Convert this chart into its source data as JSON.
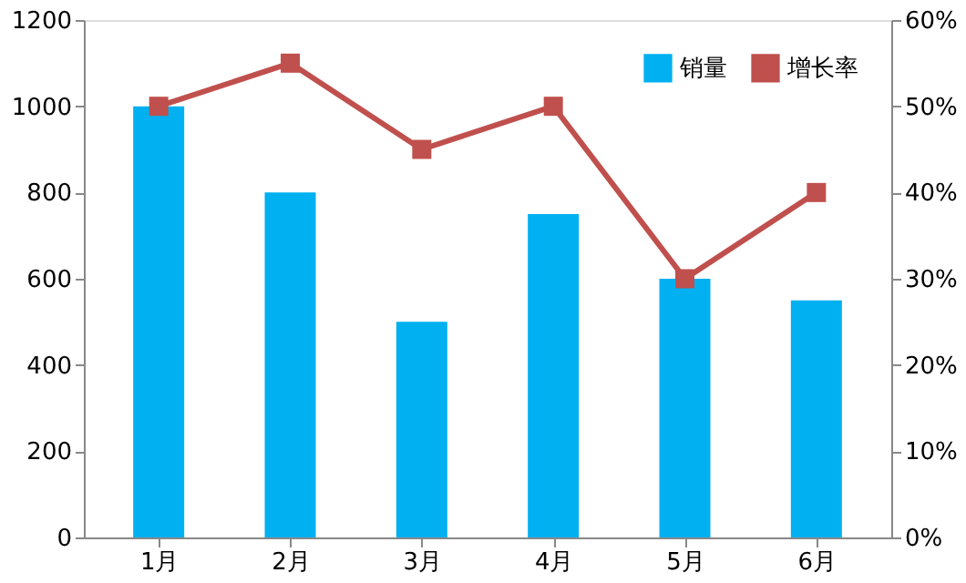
{
  "chart_data": {
    "type": "bar",
    "categories": [
      "1月",
      "2月",
      "3月",
      "4月",
      "5月",
      "6月"
    ],
    "series": [
      {
        "name": "销量",
        "color": "#00b0f0",
        "values": [
          1000,
          800,
          500,
          750,
          600,
          550
        ]
      },
      {
        "name": "增长率",
        "type": "line",
        "axis": "y2",
        "color": "#c0504d",
        "marker": "square",
        "values": [
          50,
          55,
          45,
          50,
          30,
          40
        ]
      }
    ],
    "ylim": [
      0,
      1200
    ],
    "yticks": [
      0,
      200,
      400,
      600,
      800,
      1000,
      1200
    ],
    "y2lim": [
      0,
      60
    ],
    "y2ticks": [
      {
        "value": 0,
        "label": "0%"
      },
      {
        "value": 10,
        "label": "10%"
      },
      {
        "value": 20,
        "label": "20%"
      },
      {
        "value": 30,
        "label": "30%"
      },
      {
        "value": 40,
        "label": "40%"
      },
      {
        "value": 50,
        "label": "50%"
      },
      {
        "value": 60,
        "label": "60%"
      }
    ],
    "legend": "top right",
    "grid": false
  }
}
